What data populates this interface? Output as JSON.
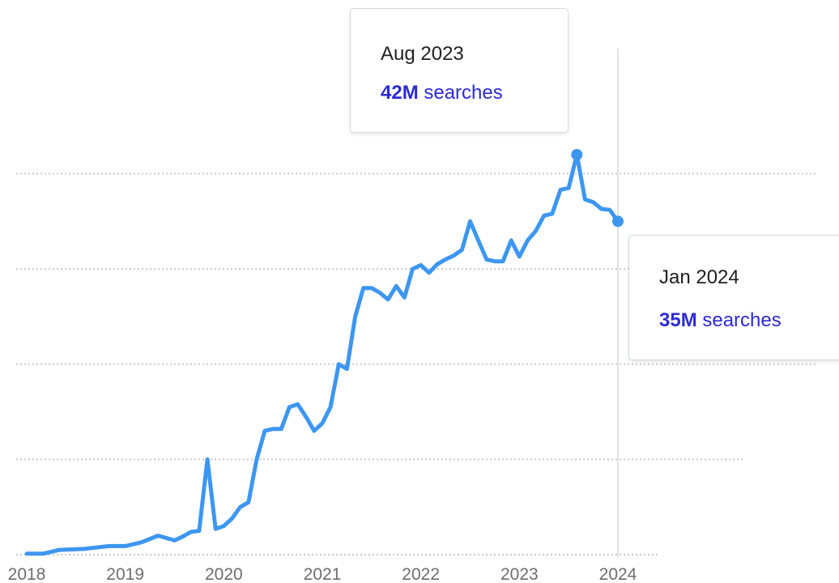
{
  "chart_data": {
    "type": "line",
    "x_tick_labels": [
      "2018",
      "2019",
      "2020",
      "2021",
      "2022",
      "2023",
      "2024"
    ],
    "xlim": [
      "2018-01",
      "2024-01"
    ],
    "ylim": [
      0,
      45
    ],
    "grid": true,
    "y_gridlines": [
      0,
      10,
      20,
      30,
      40
    ],
    "y_unit": "M searches",
    "line_color": "#3d96f0",
    "series": [
      {
        "x": [
          "2018-01",
          "2018-03",
          "2018-05",
          "2018-08",
          "2018-11",
          "2019-01",
          "2019-03",
          "2019-05",
          "2019-07",
          "2019-08",
          "2019-09",
          "2019-10",
          "2019-11",
          "2019-12",
          "2020-01",
          "2020-02",
          "2020-03",
          "2020-04",
          "2020-05",
          "2020-06",
          "2020-07",
          "2020-08",
          "2020-09",
          "2020-10",
          "2020-11",
          "2020-12",
          "2021-01",
          "2021-02",
          "2021-03",
          "2021-04",
          "2021-05",
          "2021-06",
          "2021-07",
          "2021-08",
          "2021-09",
          "2021-10",
          "2021-11",
          "2021-12",
          "2022-01",
          "2022-02",
          "2022-03",
          "2022-04",
          "2022-05",
          "2022-06",
          "2022-07",
          "2022-08",
          "2022-09",
          "2022-10",
          "2022-11",
          "2022-12",
          "2023-01",
          "2023-02",
          "2023-03",
          "2023-04",
          "2023-05",
          "2023-06",
          "2023-07",
          "2023-08",
          "2023-09",
          "2023-10",
          "2023-11",
          "2023-12",
          "2024-01"
        ],
        "y": [
          0.1,
          0.1,
          0.5,
          0.6,
          0.9,
          0.9,
          1.3,
          2.0,
          1.5,
          1.9,
          2.4,
          2.5,
          10.0,
          2.7,
          3.0,
          3.8,
          5.0,
          5.5,
          10.0,
          13.0,
          13.2,
          13.2,
          15.5,
          15.8,
          14.5,
          13.0,
          13.8,
          15.5,
          20.0,
          19.5,
          25.0,
          28.0,
          28.0,
          27.5,
          26.8,
          28.2,
          27.0,
          30.0,
          30.4,
          29.6,
          30.5,
          31.0,
          31.4,
          32.0,
          35.0,
          33.0,
          31.0,
          30.8,
          30.8,
          33.0,
          31.3,
          33.0,
          34.0,
          35.6,
          35.8,
          38.3,
          38.5,
          42.0,
          37.3,
          37.0,
          36.3,
          36.2,
          35.0
        ]
      }
    ],
    "annotations": [
      {
        "x": "2023-08",
        "y": 42,
        "date": "Aug 2023",
        "value": "42M",
        "unit": "searches"
      },
      {
        "x": "2024-01",
        "y": 35,
        "date": "Jan 2024",
        "value": "35M",
        "unit": "searches"
      }
    ]
  }
}
